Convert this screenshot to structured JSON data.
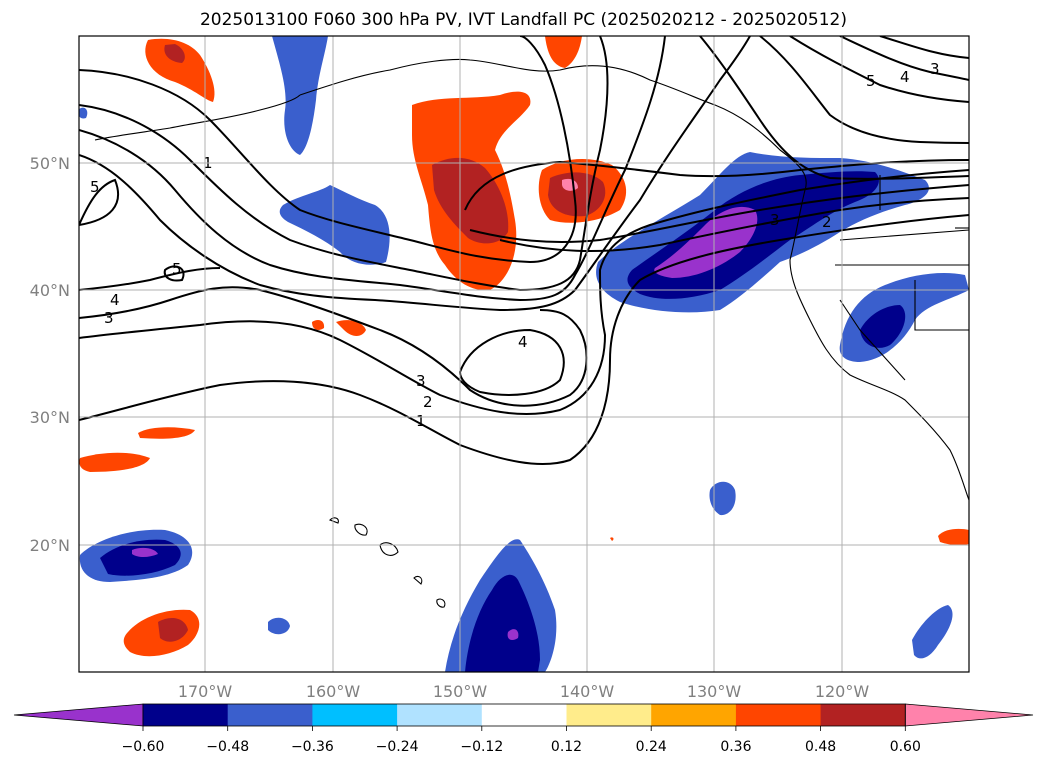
{
  "title": "2025013100 F060 300 hPa PV, IVT Landfall PC (2025020212 - 2025020512)",
  "map": {
    "lon_labels": [
      "170°W",
      "160°W",
      "150°W",
      "140°W",
      "130°W",
      "120°W"
    ],
    "lat_labels": [
      "50°N",
      "40°N",
      "30°N",
      "20°N"
    ],
    "contour_labels": [
      "1",
      "5",
      "5",
      "4",
      "3",
      "4",
      "3",
      "2",
      "1",
      "4",
      "3",
      "5",
      "3",
      "2"
    ]
  },
  "colorbar": {
    "ticks": [
      "−0.60",
      "−0.48",
      "−0.36",
      "−0.24",
      "−0.12",
      "0.12",
      "0.24",
      "0.36",
      "0.48",
      "0.60"
    ],
    "colors": [
      "#9932CC",
      "#00008B",
      "#3A5FCD",
      "#00BFFF",
      "#B0E2FF",
      "#FFFFFF",
      "#FFEC8B",
      "#FFA500",
      "#FF4500",
      "#B22222",
      "#FF82AB"
    ]
  }
}
